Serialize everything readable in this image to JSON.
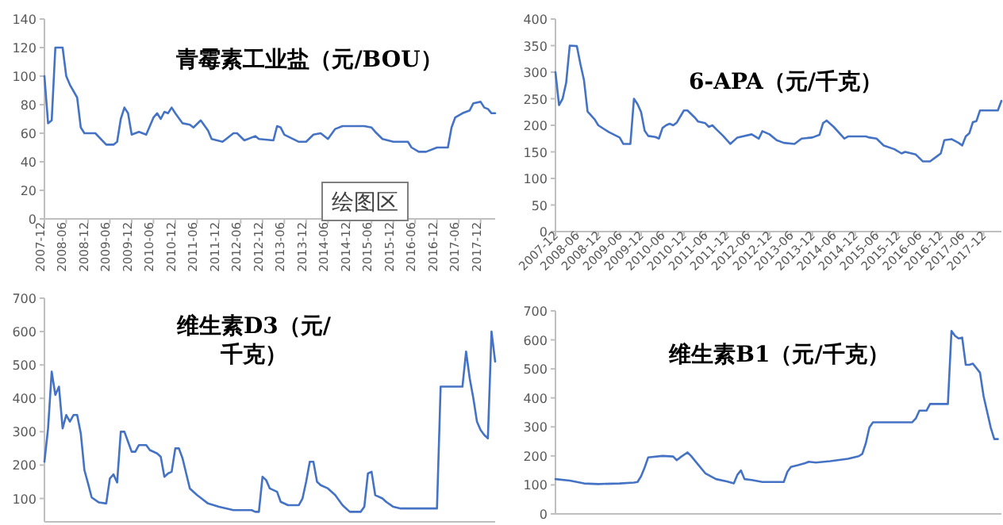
{
  "chart_data": [
    {
      "type": "line",
      "title": "青霉素工业盐（元/BOU）",
      "color": "#4472c4",
      "xlim": [
        "2007-12",
        "2018-04"
      ],
      "ylim": [
        0,
        140
      ],
      "yticks": [
        0,
        20,
        40,
        60,
        80,
        100,
        120,
        140
      ],
      "xticks": [
        "2007-12",
        "2008-06",
        "2008-12",
        "2009-06",
        "2009-12",
        "2010-06",
        "2010-12",
        "2011-06",
        "2011-12",
        "2012-06",
        "2012-12",
        "2013-06",
        "2013-12",
        "2014-06",
        "2014-12",
        "2015-06",
        "2015-12",
        "2016-06",
        "2016-12",
        "2017-06",
        "2017-12"
      ],
      "annotations": [
        "绘图区"
      ],
      "x": [
        "2007-12",
        "2008-01",
        "2008-02",
        "2008-03",
        "2008-05",
        "2008-06",
        "2008-07",
        "2008-09",
        "2008-10",
        "2008-11",
        "2009-02",
        "2009-05",
        "2009-07",
        "2009-08",
        "2009-09",
        "2009-10",
        "2009-11",
        "2009-12",
        "2010-02",
        "2010-04",
        "2010-06",
        "2010-07",
        "2010-08",
        "2010-09",
        "2010-10",
        "2010-11",
        "2010-12",
        "2011-02",
        "2011-04",
        "2011-05",
        "2011-07",
        "2011-09",
        "2011-10",
        "2012-01",
        "2012-02",
        "2012-04",
        "2012-05",
        "2012-07",
        "2012-10",
        "2012-11",
        "2013-03",
        "2013-04",
        "2013-05",
        "2013-06",
        "2013-10",
        "2013-12",
        "2014-02",
        "2014-04",
        "2014-06",
        "2014-08",
        "2014-10",
        "2015-04",
        "2015-06",
        "2015-07",
        "2015-09",
        "2015-12",
        "2016-04",
        "2016-05",
        "2016-07",
        "2016-09",
        "2016-12",
        "2017-03",
        "2017-04",
        "2017-05",
        "2017-07",
        "2017-09",
        "2017-10",
        "2017-12",
        "2018-01",
        "2018-02",
        "2018-03",
        "2018-04"
      ],
      "values": [
        100,
        67,
        69,
        120,
        120,
        100,
        94,
        85,
        64,
        60,
        60,
        52,
        52,
        54,
        70,
        78,
        74,
        59,
        61,
        59,
        71,
        74,
        70,
        75,
        74,
        78,
        74,
        67,
        66,
        64,
        69,
        62,
        56,
        54,
        56,
        60,
        60,
        55,
        58,
        56,
        55,
        65,
        64,
        59,
        54,
        54,
        59,
        60,
        56,
        63,
        65,
        65,
        64,
        61,
        56,
        54,
        54,
        50,
        47,
        47,
        50,
        50,
        64,
        71,
        74,
        76,
        81,
        82,
        78,
        77,
        74,
        74
      ]
    },
    {
      "type": "line",
      "title": "6-APA（元/千克）",
      "color": "#4472c4",
      "xlim": [
        "2007-12",
        "2018-05"
      ],
      "ylim": [
        0,
        400
      ],
      "yticks": [
        0,
        50,
        100,
        150,
        200,
        250,
        300,
        350,
        400
      ],
      "xticks": [
        "2007-12",
        "2008-06",
        "2008-12",
        "2009-06",
        "2009-12",
        "2010-06",
        "2010-12",
        "2011-06",
        "2011-12",
        "2012-06",
        "2012-12",
        "2013-06",
        "2013-12",
        "2014-06",
        "2014-12",
        "2015-06",
        "2015-12",
        "2016-06",
        "2016-12",
        "2017-06",
        "2017-12"
      ],
      "x": [
        "2007-12",
        "2008-01",
        "2008-02",
        "2008-03",
        "2008-04",
        "2008-06",
        "2008-07",
        "2008-08",
        "2008-09",
        "2008-11",
        "2008-12",
        "2009-03",
        "2009-06",
        "2009-07",
        "2009-09",
        "2009-10",
        "2009-11",
        "2009-12",
        "2010-01",
        "2010-02",
        "2010-04",
        "2010-05",
        "2010-06",
        "2010-07",
        "2010-08",
        "2010-09",
        "2010-10",
        "2010-12",
        "2011-01",
        "2011-03",
        "2011-04",
        "2011-06",
        "2011-07",
        "2011-08",
        "2011-09",
        "2011-11",
        "2012-01",
        "2012-03",
        "2012-07",
        "2012-09",
        "2012-10",
        "2012-12",
        "2013-02",
        "2013-04",
        "2013-07",
        "2013-09",
        "2013-12",
        "2014-02",
        "2014-03",
        "2014-04",
        "2014-06",
        "2014-09",
        "2014-10",
        "2015-03",
        "2015-04",
        "2015-06",
        "2015-08",
        "2015-11",
        "2016-01",
        "2016-02",
        "2016-05",
        "2016-07",
        "2016-09",
        "2016-11",
        "2016-12",
        "2017-01",
        "2017-03",
        "2017-05",
        "2017-06",
        "2017-07",
        "2017-08",
        "2017-09",
        "2017-10",
        "2017-11",
        "2018-04",
        "2018-05"
      ],
      "values": [
        300,
        238,
        250,
        280,
        350,
        349,
        315,
        285,
        226,
        211,
        200,
        187,
        177,
        165,
        165,
        250,
        240,
        225,
        190,
        180,
        178,
        175,
        195,
        200,
        203,
        200,
        205,
        228,
        228,
        215,
        207,
        204,
        197,
        200,
        193,
        180,
        165,
        177,
        183,
        175,
        189,
        183,
        172,
        167,
        165,
        175,
        177,
        182,
        204,
        209,
        197,
        175,
        179,
        179,
        177,
        175,
        162,
        155,
        147,
        150,
        145,
        132,
        132,
        142,
        147,
        172,
        174,
        167,
        162,
        179,
        185,
        206,
        208,
        228,
        228,
        246
      ]
    },
    {
      "type": "line",
      "title": "维生素D3（元/千克）",
      "color": "#4472c4",
      "xlim": [
        "2007-12",
        "2018-04"
      ],
      "ylim": [
        30,
        700
      ],
      "yticks": [
        100,
        200,
        300,
        400,
        500,
        600,
        700
      ],
      "tick_labels": "y",
      "x": [
        "2007-12",
        "2008-01",
        "2008-02",
        "2008-03",
        "2008-04",
        "2008-05",
        "2008-06",
        "2008-07",
        "2008-08",
        "2008-09",
        "2008-10",
        "2008-11",
        "2008-12",
        "2009-01",
        "2009-03",
        "2009-05",
        "2009-06",
        "2009-07",
        "2009-08",
        "2009-09",
        "2009-10",
        "2009-11",
        "2009-12",
        "2010-01",
        "2010-02",
        "2010-04",
        "2010-05",
        "2010-07",
        "2010-08",
        "2010-09",
        "2010-10",
        "2010-11",
        "2010-12",
        "2011-01",
        "2011-02",
        "2011-03",
        "2011-04",
        "2011-06",
        "2011-09",
        "2011-12",
        "2012-04",
        "2012-09",
        "2012-10",
        "2012-11",
        "2012-12",
        "2013-01",
        "2013-02",
        "2013-04",
        "2013-05",
        "2013-07",
        "2013-10",
        "2013-11",
        "2013-12",
        "2014-01",
        "2014-02",
        "2014-03",
        "2014-04",
        "2014-06",
        "2014-08",
        "2014-10",
        "2014-12",
        "2015-03",
        "2015-04",
        "2015-05",
        "2015-06",
        "2015-07",
        "2015-09",
        "2015-10",
        "2015-12",
        "2016-02",
        "2016-08",
        "2016-12",
        "2017-01",
        "2017-07",
        "2017-08",
        "2017-09",
        "2017-10",
        "2017-11",
        "2017-12",
        "2018-01",
        "2018-02",
        "2018-03",
        "2018-04"
      ],
      "values": [
        210,
        310,
        480,
        410,
        435,
        310,
        350,
        330,
        350,
        350,
        295,
        185,
        145,
        103,
        88,
        85,
        160,
        172,
        148,
        300,
        300,
        270,
        240,
        240,
        260,
        260,
        245,
        235,
        225,
        165,
        175,
        180,
        250,
        250,
        220,
        175,
        130,
        110,
        85,
        75,
        65,
        65,
        60,
        60,
        165,
        155,
        130,
        120,
        90,
        80,
        80,
        100,
        150,
        210,
        210,
        150,
        140,
        130,
        110,
        80,
        60,
        60,
        75,
        175,
        180,
        110,
        100,
        90,
        75,
        70,
        70,
        70,
        435,
        435,
        540,
        460,
        400,
        330,
        305,
        290,
        280,
        600,
        510
      ]
    },
    {
      "type": "line",
      "title": "维生素B1（元/千克）",
      "color": "#4472c4",
      "xlim": [
        "2007-12",
        "2018-05"
      ],
      "ylim": [
        0,
        700
      ],
      "yticks": [
        0,
        100,
        200,
        300,
        400,
        500,
        600,
        700
      ],
      "tick_labels": "y",
      "x": [
        "2007-12",
        "2008-04",
        "2008-08",
        "2008-12",
        "2009-06",
        "2009-10",
        "2009-11",
        "2009-12",
        "2010-01",
        "2010-02",
        "2010-06",
        "2010-09",
        "2010-10",
        "2010-11",
        "2011-01",
        "2011-02",
        "2011-04",
        "2011-06",
        "2011-09",
        "2011-12",
        "2012-02",
        "2012-03",
        "2012-04",
        "2012-05",
        "2012-07",
        "2012-10",
        "2013-04",
        "2013-05",
        "2013-06",
        "2013-08",
        "2013-10",
        "2013-11",
        "2014-01",
        "2014-05",
        "2014-10",
        "2015-01",
        "2015-02",
        "2015-03",
        "2015-04",
        "2015-05",
        "2016-04",
        "2016-05",
        "2016-06",
        "2016-08",
        "2016-09",
        "2017-02",
        "2017-03",
        "2017-04",
        "2017-05",
        "2017-06",
        "2017-07",
        "2017-08",
        "2017-09",
        "2017-11",
        "2017-12",
        "2018-02",
        "2018-03",
        "2018-04"
      ],
      "values": [
        120,
        115,
        105,
        103,
        105,
        108,
        110,
        130,
        160,
        195,
        200,
        198,
        185,
        195,
        212,
        200,
        170,
        140,
        120,
        112,
        105,
        135,
        150,
        120,
        117,
        110,
        110,
        145,
        162,
        168,
        175,
        180,
        177,
        182,
        190,
        199,
        207,
        244,
        298,
        316,
        316,
        329,
        356,
        356,
        379,
        379,
        631,
        614,
        605,
        608,
        514,
        514,
        518,
        487,
        406,
        298,
        258,
        258
      ]
    }
  ]
}
